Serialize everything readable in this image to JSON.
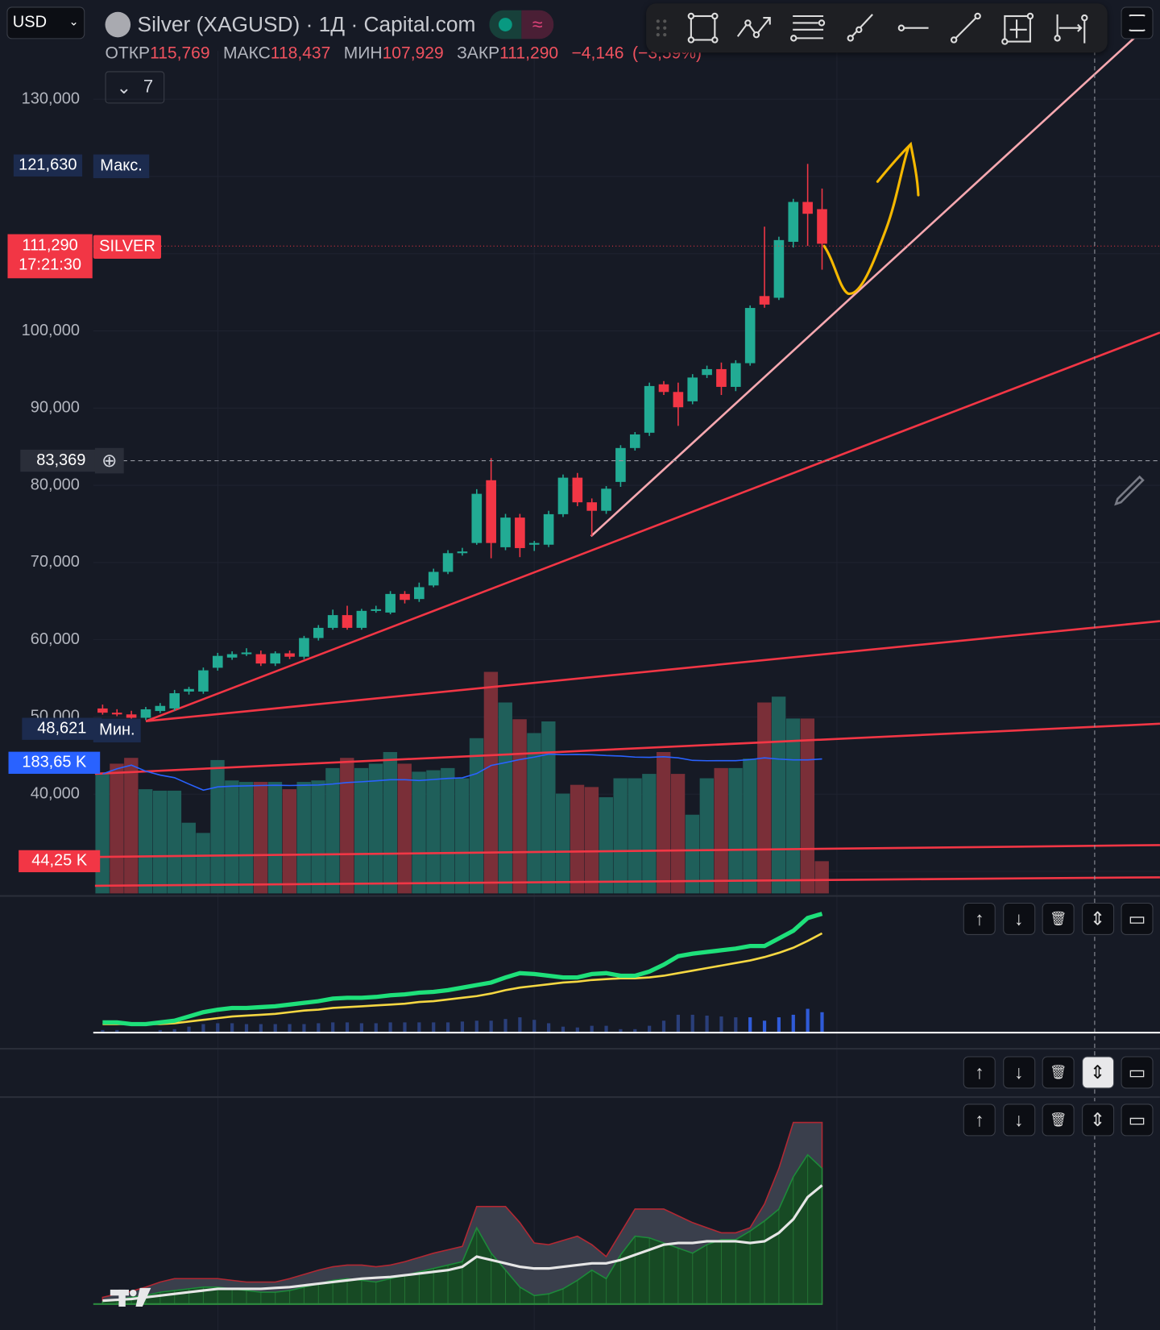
{
  "header": {
    "currency": "USD",
    "symbol_title": "Silver (XAGUSD) · 1Д · Capital.com",
    "ohlc": [
      {
        "label": "ОТКР",
        "value": "115,769"
      },
      {
        "label": "МАКС",
        "value": "118,437"
      },
      {
        "label": "МИН",
        "value": "107,929"
      },
      {
        "label": "ЗАКР",
        "value": "111,290"
      }
    ],
    "change": "−4,146",
    "change_pct": "(−3,59%)",
    "collapsed_indicators_count": "7"
  },
  "toolbar": {
    "icons": [
      "drag-handle-icon",
      "rectangle-icon",
      "path-icon",
      "fib-retracement-icon",
      "trend-line-icon",
      "horizontal-ray-icon",
      "line-segment-icon",
      "price-range-icon",
      "date-range-icon"
    ],
    "fullscreen_icon": "fullscreen-icon"
  },
  "price_axis": {
    "labels": [
      "130,000",
      "100,000",
      "90,000",
      "80,000",
      "70,000",
      "60,000",
      "50,000",
      "40,000"
    ],
    "max_tag": {
      "value": "121,630",
      "label": "Макс."
    },
    "min_tag": {
      "value": "48,621",
      "label": "Мин."
    },
    "last_tag": {
      "value": "111,290",
      "time": "17:21:30",
      "label": "SILVER"
    },
    "crosshair_value": "83,369",
    "volume_ma_tag": "183,65 K",
    "volume_tag": "44,25 K"
  },
  "colors": {
    "up": "#22ab94",
    "down": "#f23645",
    "background": "#161a25",
    "trendline_main": "#f7a8b0",
    "trendline": "#f23645",
    "annotation": "#f5b800"
  },
  "chart_data": {
    "type": "candlestick",
    "ylim": [
      30000,
      135000
    ],
    "grid": true,
    "candles": [
      [
        51100,
        51600,
        50300,
        50550
      ],
      [
        50550,
        51000,
        50100,
        50330
      ],
      [
        50330,
        50800,
        49600,
        49890
      ],
      [
        49890,
        51300,
        49600,
        50990
      ],
      [
        50770,
        51800,
        50500,
        51430
      ],
      [
        51100,
        53500,
        50800,
        53070
      ],
      [
        53290,
        53900,
        52900,
        53620
      ],
      [
        53290,
        56400,
        53000,
        56040
      ],
      [
        56370,
        58300,
        56000,
        57910
      ],
      [
        57690,
        58500,
        57400,
        58130
      ],
      [
        58130,
        58900,
        57900,
        58350
      ],
      [
        58130,
        58600,
        56600,
        56920
      ],
      [
        56920,
        58500,
        56600,
        58240
      ],
      [
        58240,
        58600,
        57500,
        57800
      ],
      [
        57800,
        60500,
        57500,
        60220
      ],
      [
        60220,
        61900,
        59900,
        61540
      ],
      [
        61540,
        63900,
        61300,
        63190
      ],
      [
        63190,
        64400,
        61300,
        61540
      ],
      [
        61540,
        64000,
        61300,
        63740
      ],
      [
        63740,
        64400,
        63500,
        63950
      ],
      [
        63520,
        66300,
        63300,
        65930
      ],
      [
        65930,
        66300,
        64700,
        65160
      ],
      [
        65270,
        67400,
        64900,
        66810
      ],
      [
        67030,
        69200,
        66800,
        68790
      ],
      [
        68790,
        71600,
        68500,
        71210
      ],
      [
        71210,
        71900,
        70900,
        71430
      ],
      [
        72530,
        79500,
        72300,
        78900
      ],
      [
        80660,
        83520,
        70550,
        72530
      ],
      [
        71980,
        76300,
        71600,
        75820
      ],
      [
        75820,
        76300,
        70700,
        71870
      ],
      [
        72310,
        72800,
        71500,
        72530
      ],
      [
        72310,
        76700,
        72000,
        76260
      ],
      [
        76260,
        81400,
        75900,
        80990
      ],
      [
        80990,
        81600,
        77300,
        77800
      ],
      [
        77800,
        78300,
        73400,
        76700
      ],
      [
        76700,
        79900,
        76300,
        79560
      ],
      [
        80440,
        85200,
        79800,
        84830
      ],
      [
        84830,
        86900,
        84500,
        86590
      ],
      [
        86810,
        93300,
        86400,
        92860
      ],
      [
        93080,
        93500,
        91700,
        92090
      ],
      [
        92090,
        93300,
        87700,
        90110
      ],
      [
        90880,
        94400,
        90500,
        93960
      ],
      [
        94290,
        95500,
        93900,
        95050
      ],
      [
        95050,
        95900,
        91700,
        92750
      ],
      [
        92750,
        96200,
        92200,
        95820
      ],
      [
        95820,
        103300,
        95500,
        102970
      ],
      [
        104510,
        113500,
        103000,
        103410
      ],
      [
        104290,
        112200,
        104000,
        111760
      ],
      [
        111540,
        117100,
        110800,
        116700
      ],
      [
        116700,
        121630,
        111000,
        115170
      ],
      [
        115769,
        118437,
        107929,
        111290
      ]
    ],
    "volume_k": [
      164,
      178,
      186,
      143,
      141,
      141,
      97,
      83,
      183,
      155,
      153,
      153,
      153,
      143,
      153,
      155,
      172,
      186,
      172,
      178,
      194,
      178,
      167,
      169,
      172,
      158,
      213,
      304,
      262,
      239,
      220,
      236,
      137,
      149,
      146,
      132,
      158,
      158,
      164,
      194,
      164,
      108,
      158,
      172,
      172,
      185,
      262,
      270,
      240,
      240,
      44.25
    ],
    "volume_dir": [
      "u",
      "d",
      "d",
      "u",
      "u",
      "u",
      "u",
      "u",
      "u",
      "u",
      "u",
      "d",
      "u",
      "d",
      "u",
      "u",
      "u",
      "d",
      "u",
      "u",
      "u",
      "d",
      "u",
      "u",
      "u",
      "u",
      "u",
      "d",
      "u",
      "d",
      "u",
      "u",
      "u",
      "d",
      "d",
      "u",
      "u",
      "u",
      "u",
      "d",
      "d",
      "u",
      "u",
      "d",
      "u",
      "u",
      "d",
      "u",
      "u",
      "d",
      "d"
    ],
    "indicator_1": {
      "fast": [
        10,
        10,
        8,
        8,
        10,
        12,
        17,
        22,
        25,
        27,
        27,
        28,
        29,
        31,
        33,
        35,
        38,
        39,
        39,
        40,
        42,
        43,
        45,
        46,
        48,
        51,
        54,
        57,
        63,
        68,
        67,
        65,
        63,
        63,
        67,
        68,
        65,
        65,
        70,
        78,
        88,
        91,
        93,
        95,
        97,
        100,
        100,
        109,
        118,
        133,
        138
      ],
      "slow": [
        8,
        8,
        8,
        8,
        8,
        9,
        11,
        13,
        15,
        17,
        18,
        19,
        20,
        22,
        24,
        25,
        27,
        28,
        29,
        30,
        31,
        32,
        34,
        35,
        37,
        39,
        41,
        44,
        48,
        51,
        53,
        55,
        57,
        58,
        60,
        61,
        62,
        62,
        63,
        65,
        68,
        71,
        74,
        77,
        80,
        83,
        87,
        92,
        98,
        106,
        115
      ],
      "histogram": [
        2,
        2,
        0,
        0,
        2,
        3,
        6,
        9,
        10,
        10,
        9,
        9,
        9,
        9,
        9,
        10,
        11,
        11,
        10,
        10,
        11,
        11,
        11,
        11,
        11,
        12,
        13,
        13,
        15,
        17,
        14,
        10,
        6,
        5,
        7,
        7,
        3,
        3,
        7,
        13,
        20,
        20,
        19,
        18,
        17,
        17,
        13,
        17,
        20,
        27,
        23
      ]
    },
    "indicator_2": {
      "upper": [
        8,
        12,
        15,
        20,
        26,
        30,
        30,
        30,
        30,
        28,
        26,
        26,
        26,
        30,
        35,
        40,
        44,
        46,
        46,
        44,
        46,
        50,
        55,
        60,
        64,
        68,
        115,
        115,
        115,
        96,
        72,
        70,
        75,
        80,
        70,
        56,
        84,
        112,
        112,
        112,
        104,
        96,
        90,
        84,
        84,
        90,
        118,
        160,
        214,
        214,
        214
      ],
      "lower": [
        3,
        5,
        8,
        10,
        14,
        16,
        18,
        20,
        20,
        18,
        16,
        14,
        14,
        16,
        20,
        24,
        28,
        30,
        28,
        26,
        30,
        34,
        38,
        42,
        46,
        50,
        90,
        60,
        40,
        20,
        10,
        12,
        18,
        28,
        40,
        30,
        58,
        80,
        78,
        72,
        66,
        60,
        70,
        76,
        76,
        86,
        98,
        112,
        150,
        176,
        160
      ],
      "mid": [
        4,
        5,
        6,
        8,
        10,
        12,
        14,
        16,
        18,
        18,
        18,
        18,
        19,
        20,
        22,
        24,
        26,
        28,
        30,
        31,
        32,
        34,
        36,
        38,
        40,
        44,
        56,
        52,
        48,
        44,
        42,
        42,
        44,
        46,
        48,
        48,
        52,
        58,
        64,
        70,
        72,
        72,
        74,
        74,
        74,
        72,
        74,
        84,
        100,
        126,
        140
      ]
    }
  }
}
